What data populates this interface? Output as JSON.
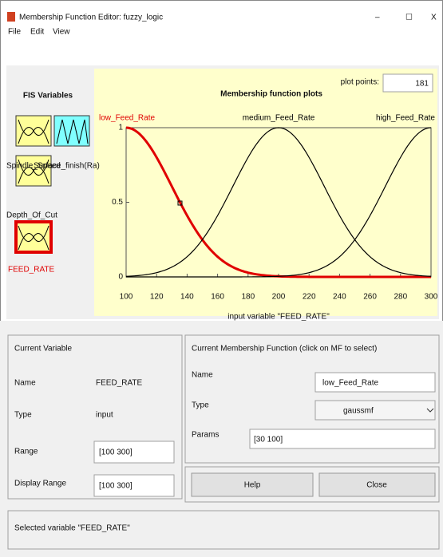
{
  "window": {
    "title": "Membership Function Editor: fuzzy_logic",
    "controls": [
      "–",
      "☐",
      "X"
    ]
  },
  "menu": [
    "File",
    "Edit",
    "View"
  ],
  "fis_variables": {
    "title": "FIS Variables",
    "items": [
      "Spindle_Speed",
      "Surface_finish(Ra)",
      "Depth_Of_Cut",
      "FEED_RATE"
    ]
  },
  "plot": {
    "title": "Membership function plots",
    "plot_points_label": "plot points:",
    "plot_points": 181,
    "xlabel": "input variable \"FEED_RATE\"",
    "xlim": [
      100,
      300
    ],
    "ylim": [
      0,
      1
    ],
    "xticks": [
      100,
      120,
      140,
      160,
      180,
      200,
      220,
      240,
      260,
      280,
      300
    ],
    "yticks": [
      0,
      0.5,
      1
    ],
    "mfs": [
      {
        "name": "low_Feed_Rate",
        "color": "#e00000",
        "params": [
          30,
          100
        ]
      },
      {
        "name": "medium_Feed_Rate",
        "color": "#000000",
        "params": [
          30,
          200
        ]
      },
      {
        "name": "high_Feed_Rate",
        "color": "#000000",
        "params": [
          30,
          300
        ]
      }
    ]
  },
  "current_variable": {
    "title": "Current Variable",
    "name_label": "Name",
    "name": "FEED_RATE",
    "type_label": "Type",
    "type": "input",
    "range_label": "Range",
    "range": "[100 300]",
    "display_range_label": "Display Range",
    "display_range": "[100 300]"
  },
  "current_mf": {
    "title": "Current Membership Function (click on MF to select)",
    "name_label": "Name",
    "name": "low_Feed_Rate",
    "type_label": "Type",
    "type": "gaussmf",
    "params_label": "Params",
    "params": "[30 100]"
  },
  "buttons": [
    "Help",
    "Close"
  ],
  "status": "Selected variable \"FEED_RATE\""
}
